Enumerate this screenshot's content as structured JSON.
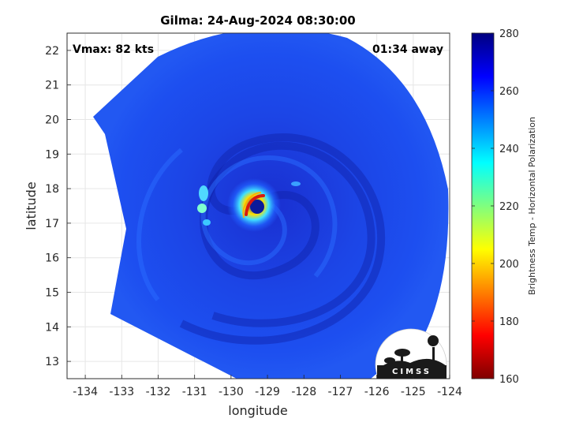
{
  "chart_data": {
    "type": "heatmap",
    "title": "Gilma: 24-Aug-2024 08:30:00",
    "xlabel": "longitude",
    "ylabel": "latitude",
    "xlim": [
      -134.5,
      -124
    ],
    "ylim": [
      12.5,
      22.5
    ],
    "x_ticks": [
      -134,
      -133,
      -132,
      -131,
      -130,
      -129,
      -128,
      -127,
      -126,
      -125,
      -124
    ],
    "y_ticks": [
      13,
      14,
      15,
      16,
      17,
      18,
      19,
      20,
      21,
      22
    ],
    "x_tick_labels": [
      "-134",
      "-133",
      "-132",
      "-131",
      "-130",
      "-129",
      "-128",
      "-127",
      "-126",
      "-125",
      "-124"
    ],
    "y_tick_labels": [
      "13",
      "14",
      "15",
      "16",
      "17",
      "18",
      "19",
      "20",
      "21",
      "22"
    ],
    "grid": true,
    "colorbar": {
      "label": "Brightness Temp - Horizontal Polarization",
      "range": [
        160,
        280
      ],
      "ticks": [
        160,
        180,
        200,
        220,
        240,
        260,
        280
      ],
      "tick_labels": [
        "160",
        "180",
        "200",
        "220",
        "240",
        "260",
        "280"
      ],
      "colormap": "jet"
    },
    "storm_center": {
      "lon": -129.3,
      "lat": 17.5
    },
    "annotations": {
      "left": "Vmax: 82 kts",
      "right": "01:34 away"
    }
  },
  "logo": {
    "text": "CIMSS"
  },
  "colors": {
    "background_field": "#1a3fe0",
    "eyewall": "#d81b0f",
    "grid": "#e6e6e6"
  }
}
